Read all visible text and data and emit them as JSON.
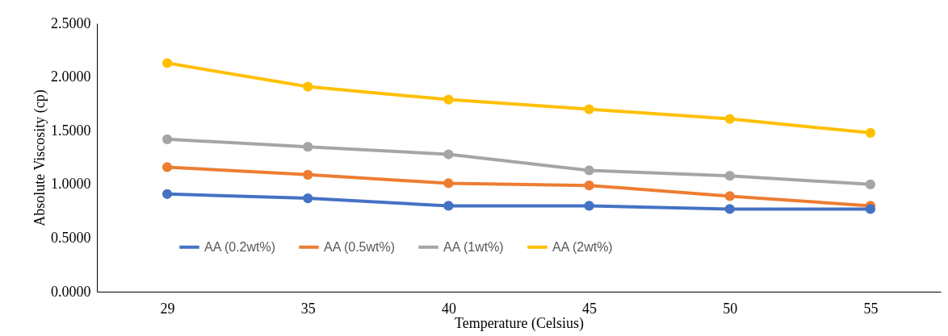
{
  "chart_data": {
    "type": "line",
    "xlabel": "Temperature  (Celsius)",
    "ylabel": "Absolute Viscosity (cp)",
    "categories": [
      "29",
      "35",
      "40",
      "45",
      "50",
      "55"
    ],
    "series": [
      {
        "name": "AA (0.2wt%)",
        "color": "#4472c4",
        "values": [
          0.91,
          0.87,
          0.8,
          0.8,
          0.77,
          0.77
        ]
      },
      {
        "name": "AA (0.5wt%)",
        "color": "#ed7d31",
        "values": [
          1.16,
          1.09,
          1.01,
          0.99,
          0.89,
          0.8
        ]
      },
      {
        "name": "AA (1wt%)",
        "color": "#a5a5a5",
        "values": [
          1.42,
          1.35,
          1.28,
          1.13,
          1.08,
          1.0
        ]
      },
      {
        "name": "AA (2wt%)",
        "color": "#ffc000",
        "values": [
          2.13,
          1.91,
          1.79,
          1.7,
          1.61,
          1.48
        ]
      }
    ],
    "ylim": [
      0,
      2.5
    ],
    "yticks": [
      {
        "value": 0,
        "label": "0.0000"
      },
      {
        "value": 0.5,
        "label": "0.5000"
      },
      {
        "value": 1,
        "label": "1.0000"
      },
      {
        "value": 1.5,
        "label": "1.5000"
      },
      {
        "value": 2,
        "label": "2.0000"
      },
      {
        "value": 2.5,
        "label": "2.5000"
      }
    ],
    "grid": false,
    "legend": "bottom",
    "marker": "circle",
    "line_style": "solid"
  }
}
